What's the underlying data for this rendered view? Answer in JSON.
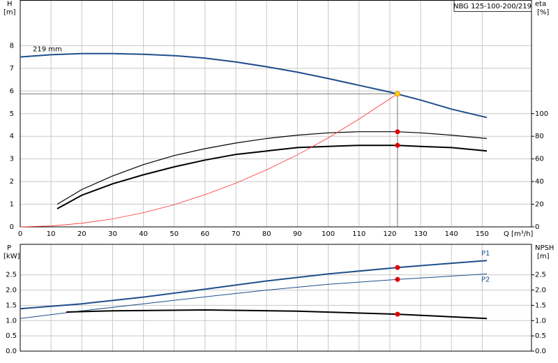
{
  "chart_data": [
    {
      "type": "line",
      "title": "NBG 125-100-200/219",
      "ylabel": "H",
      "yunit": "[m]",
      "y2label": "eta",
      "y2unit": "[%]",
      "xlabel": "Q [m³/h]",
      "xlim": [
        0,
        166
      ],
      "xticks": [
        0,
        10,
        20,
        30,
        40,
        50,
        60,
        70,
        80,
        90,
        100,
        110,
        120,
        130,
        140,
        150
      ],
      "ylim": [
        0,
        10
      ],
      "yticks": [
        0,
        1,
        2,
        3,
        4,
        5,
        6,
        7,
        8
      ],
      "y2lim": [
        0,
        200
      ],
      "y2ticks": [
        0,
        20,
        40,
        60,
        80,
        100
      ],
      "grid": true,
      "series": [
        {
          "name": "219 mm",
          "color": "#1f4e8c",
          "line_width": 2,
          "axis": "y",
          "x": [
            0,
            10,
            20,
            30,
            40,
            50,
            60,
            70,
            80,
            90,
            100,
            110,
            120,
            130,
            140,
            151.5
          ],
          "values": [
            7.5,
            7.6,
            7.65,
            7.65,
            7.62,
            7.56,
            7.45,
            7.28,
            7.07,
            6.83,
            6.55,
            6.25,
            5.95,
            5.6,
            5.2,
            4.83
          ],
          "marker": {
            "x": 122.5,
            "y": 5.87,
            "color": "#ffd400"
          }
        },
        {
          "color": "#000000",
          "line_width": 1.2,
          "axis": "y2",
          "x": [
            12,
            20,
            30,
            40,
            50,
            60,
            70,
            80,
            90,
            100,
            110,
            122.5,
            130,
            140,
            151.5
          ],
          "values": [
            20,
            33,
            45,
            55,
            63,
            69,
            74,
            78,
            81,
            83,
            84,
            84,
            83,
            81,
            78
          ],
          "marker": {
            "x": 122.5,
            "y": 84,
            "color": "#e00000"
          }
        },
        {
          "color": "#000000",
          "line_width": 2,
          "axis": "y2",
          "x": [
            12,
            20,
            30,
            40,
            50,
            60,
            70,
            80,
            90,
            100,
            110,
            122.5,
            130,
            140,
            151.5
          ],
          "values": [
            16,
            28,
            38,
            46,
            53,
            59,
            64,
            67,
            70,
            71,
            72,
            72,
            71,
            70,
            67
          ],
          "marker": {
            "x": 122.5,
            "y": 72,
            "color": "#e00000"
          }
        },
        {
          "color": "#ff3030",
          "line_width": 0.8,
          "axis": "y",
          "x": [
            0,
            10,
            20,
            30,
            40,
            50,
            60,
            70,
            80,
            90,
            100,
            110,
            122.5
          ],
          "values": [
            0,
            0.04,
            0.16,
            0.35,
            0.63,
            0.98,
            1.42,
            1.93,
            2.52,
            3.18,
            3.93,
            4.76,
            5.87
          ]
        }
      ]
    },
    {
      "type": "line",
      "ylabel": "P",
      "yunit": "[kW]",
      "y2label": "NPSH",
      "y2unit": "[m]",
      "xlim": [
        0,
        166
      ],
      "ylim": [
        0,
        3.5
      ],
      "yticks": [
        {
          "value": 0,
          "label": "0.0"
        },
        {
          "value": 0.5,
          "label": "0.5"
        },
        {
          "value": 1,
          "label": "1.0"
        },
        {
          "value": 1.5,
          "label": "1.5"
        },
        {
          "value": 2,
          "label": "2.0"
        },
        {
          "value": 2.5,
          "label": "2.5"
        }
      ],
      "y2lim": [
        0,
        3.5
      ],
      "y2ticks": [
        {
          "value": 0,
          "label": "0.0"
        },
        {
          "value": 0.5,
          "label": "0.5"
        },
        {
          "value": 1,
          "label": "1.0"
        },
        {
          "value": 1.5,
          "label": "1.5"
        },
        {
          "value": 2,
          "label": "2.0"
        },
        {
          "value": 2.5,
          "label": "2.5"
        }
      ],
      "grid": true,
      "series": [
        {
          "name": "P1",
          "color": "#1f4e8c",
          "line_width": 2,
          "axis": "y",
          "x": [
            0,
            20,
            40,
            60,
            80,
            100,
            122.5,
            140,
            151.5
          ],
          "values": [
            1.39,
            1.55,
            1.77,
            2.03,
            2.3,
            2.53,
            2.74,
            2.88,
            2.97
          ],
          "marker": {
            "x": 122.5,
            "y": 2.74,
            "color": "#e00000"
          }
        },
        {
          "name": "P2",
          "color": "#1f4e8c",
          "line_width": 1,
          "axis": "y",
          "x": [
            0,
            20,
            40,
            60,
            80,
            100,
            122.5,
            140,
            151.5
          ],
          "values": [
            1.07,
            1.32,
            1.55,
            1.78,
            2.0,
            2.19,
            2.35,
            2.46,
            2.53
          ],
          "marker": {
            "x": 122.5,
            "y": 2.35,
            "color": "#e00000"
          }
        },
        {
          "color": "#000000",
          "line_width": 2,
          "axis": "y2",
          "x": [
            15,
            30,
            60,
            90,
            122.5,
            151.5
          ],
          "values": [
            1.28,
            1.32,
            1.35,
            1.31,
            1.21,
            1.07
          ],
          "marker": {
            "x": 122.5,
            "y": 1.21,
            "color": "#e00000"
          }
        }
      ]
    }
  ]
}
